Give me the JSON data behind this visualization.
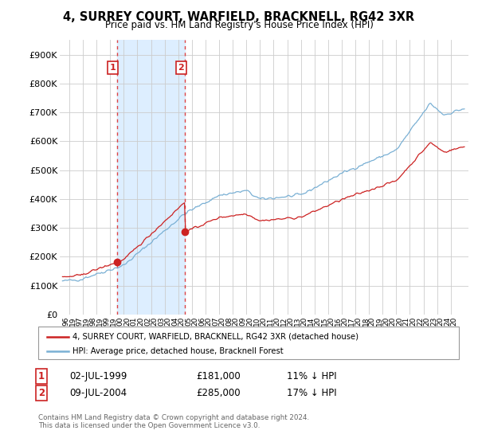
{
  "title": "4, SURREY COURT, WARFIELD, BRACKNELL, RG42 3XR",
  "subtitle": "Price paid vs. HM Land Registry's House Price Index (HPI)",
  "ylim": [
    0,
    950000
  ],
  "yticks": [
    0,
    100000,
    200000,
    300000,
    400000,
    500000,
    600000,
    700000,
    800000,
    900000
  ],
  "ytick_labels": [
    "£0",
    "£100K",
    "£200K",
    "£300K",
    "£400K",
    "£500K",
    "£600K",
    "£700K",
    "£800K",
    "£900K"
  ],
  "hpi_color": "#7ab0d4",
  "price_color": "#cc2222",
  "vline_color": "#dd4444",
  "shade_color": "#ddeeff",
  "annotation_box_color": "#cc2222",
  "legend_line1": "4, SURREY COURT, WARFIELD, BRACKNELL, RG42 3XR (detached house)",
  "legend_line2": "HPI: Average price, detached house, Bracknell Forest",
  "transaction1_label": "1",
  "transaction1_date": "02-JUL-1999",
  "transaction1_price": "£181,000",
  "transaction1_hpi": "11% ↓ HPI",
  "transaction2_label": "2",
  "transaction2_date": "09-JUL-2004",
  "transaction2_price": "£285,000",
  "transaction2_hpi": "17% ↓ HPI",
  "footnote": "Contains HM Land Registry data © Crown copyright and database right 2024.\nThis data is licensed under the Open Government Licence v3.0.",
  "background_color": "#ffffff",
  "grid_color": "#cccccc",
  "sale1_x": 1999.5,
  "sale1_y": 181000,
  "sale2_x": 2004.5,
  "sale2_y": 285000,
  "xlim_start": 1995.5,
  "xlim_end": 2025.0
}
